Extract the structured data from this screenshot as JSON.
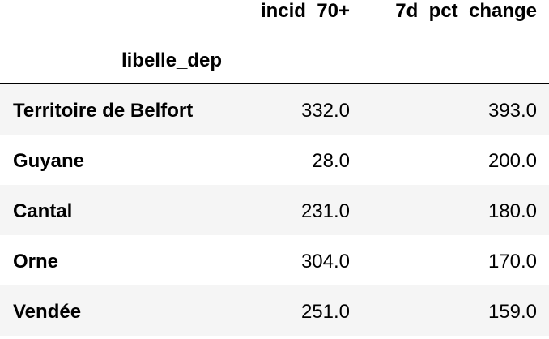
{
  "table": {
    "columns": [
      "incid_70+",
      "7d_pct_change"
    ],
    "index_name": "libelle_dep",
    "rows": [
      {
        "label": "Territoire de Belfort",
        "incid_70": "332.0",
        "pct_change": "393.0"
      },
      {
        "label": "Guyane",
        "incid_70": "28.0",
        "pct_change": "200.0"
      },
      {
        "label": "Cantal",
        "incid_70": "231.0",
        "pct_change": "180.0"
      },
      {
        "label": "Orne",
        "incid_70": "304.0",
        "pct_change": "170.0"
      },
      {
        "label": "Vendée",
        "incid_70": "251.0",
        "pct_change": "159.0"
      }
    ]
  }
}
